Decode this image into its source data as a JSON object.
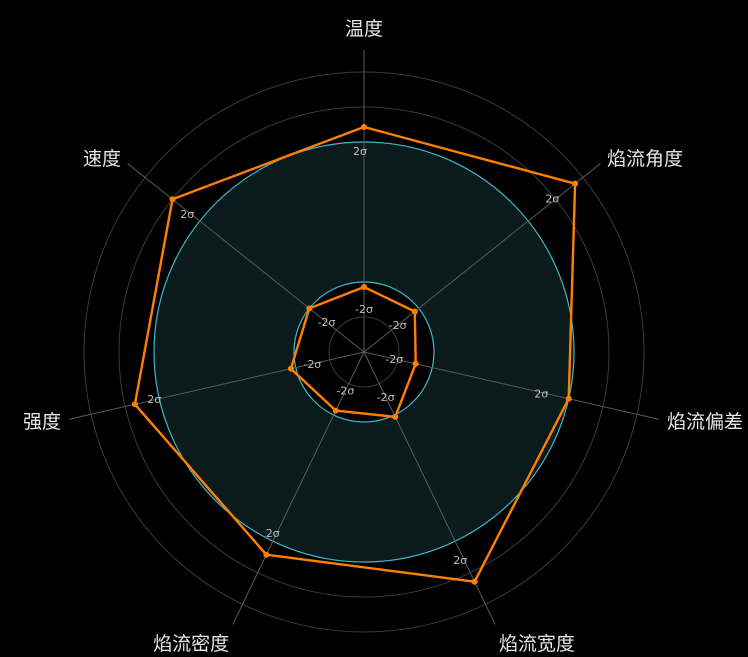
{
  "chart_data": {
    "type": "radar",
    "title": "",
    "axes": [
      "温度",
      "焰流角度",
      "焰流偏差",
      "焰流宽度",
      "焰流密度",
      "强度",
      "速度"
    ],
    "band_label_outer": "2σ",
    "band_label_inner": "-2σ",
    "series": [
      {
        "values": [
          225,
          270,
          210,
          255,
          225,
          235,
          245
        ]
      },
      {
        "values": [
          65,
          65,
          53,
          72,
          65,
          75,
          70
        ]
      }
    ],
    "band": {
      "inner": 70,
      "outer": 210
    },
    "rlim": [
      0,
      280
    ],
    "grid_rings": [
      35,
      70,
      105,
      140,
      175,
      210,
      245,
      280
    ],
    "colors": {
      "background": "#000000",
      "series": "#ff8000",
      "band_line": "#3bb8c9",
      "band_fill": "#0b1a1b",
      "grid": "#3a3a3a",
      "spoke": "#5a5a5a",
      "axis_label": "#e6e6e6",
      "band_label": "#bfbfbf"
    }
  }
}
